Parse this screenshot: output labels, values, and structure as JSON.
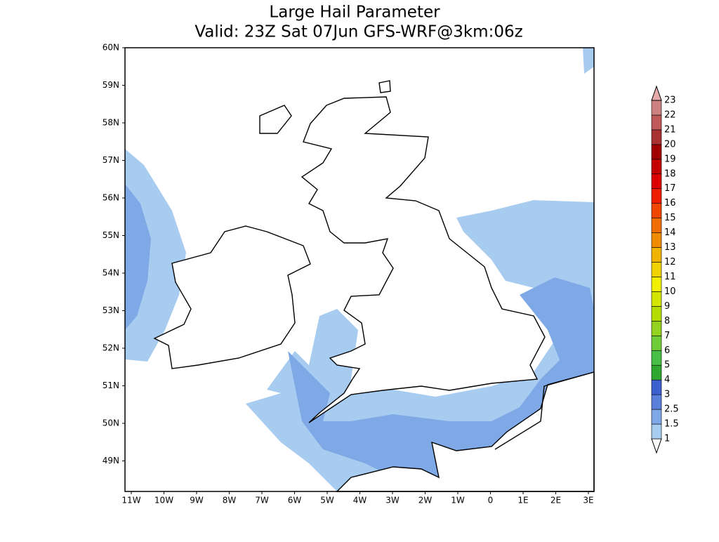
{
  "title": "Large Hail Parameter",
  "subtitle": "Valid: 23Z Sat 07Jun GFS-WRF@3km:06z",
  "map": {
    "lat_labels": [
      "60N",
      "59N",
      "58N",
      "57N",
      "56N",
      "55N",
      "54N",
      "53N",
      "52N",
      "51N",
      "50N",
      "49N"
    ],
    "lon_labels": [
      "11W",
      "10W",
      "9W",
      "8W",
      "7W",
      "6W",
      "5W",
      "4W",
      "3W",
      "2W",
      "1W",
      "0",
      "1E",
      "2E",
      "3E"
    ]
  },
  "colorbar": {
    "labels": [
      "1",
      "1.5",
      "2.5",
      "3",
      "4",
      "5",
      "6",
      "7",
      "8",
      "9",
      "10",
      "11",
      "12",
      "13",
      "14",
      "15",
      "16",
      "17",
      "18",
      "19",
      "20",
      "21",
      "22",
      "23"
    ],
    "colors": [
      "#ffffff",
      "#a8ccf0",
      "#7ea8e6",
      "#5a80dc",
      "#3c60d0",
      "#30a830",
      "#48c048",
      "#70cc38",
      "#94d220",
      "#b4dc00",
      "#d2e600",
      "#f0f000",
      "#f0d200",
      "#f0b400",
      "#f08c00",
      "#f06e00",
      "#f04600",
      "#f01e00",
      "#dc0000",
      "#c40000",
      "#a00000",
      "#a83232",
      "#c05a5a",
      "#cc8080",
      "#e6aaaa"
    ]
  }
}
